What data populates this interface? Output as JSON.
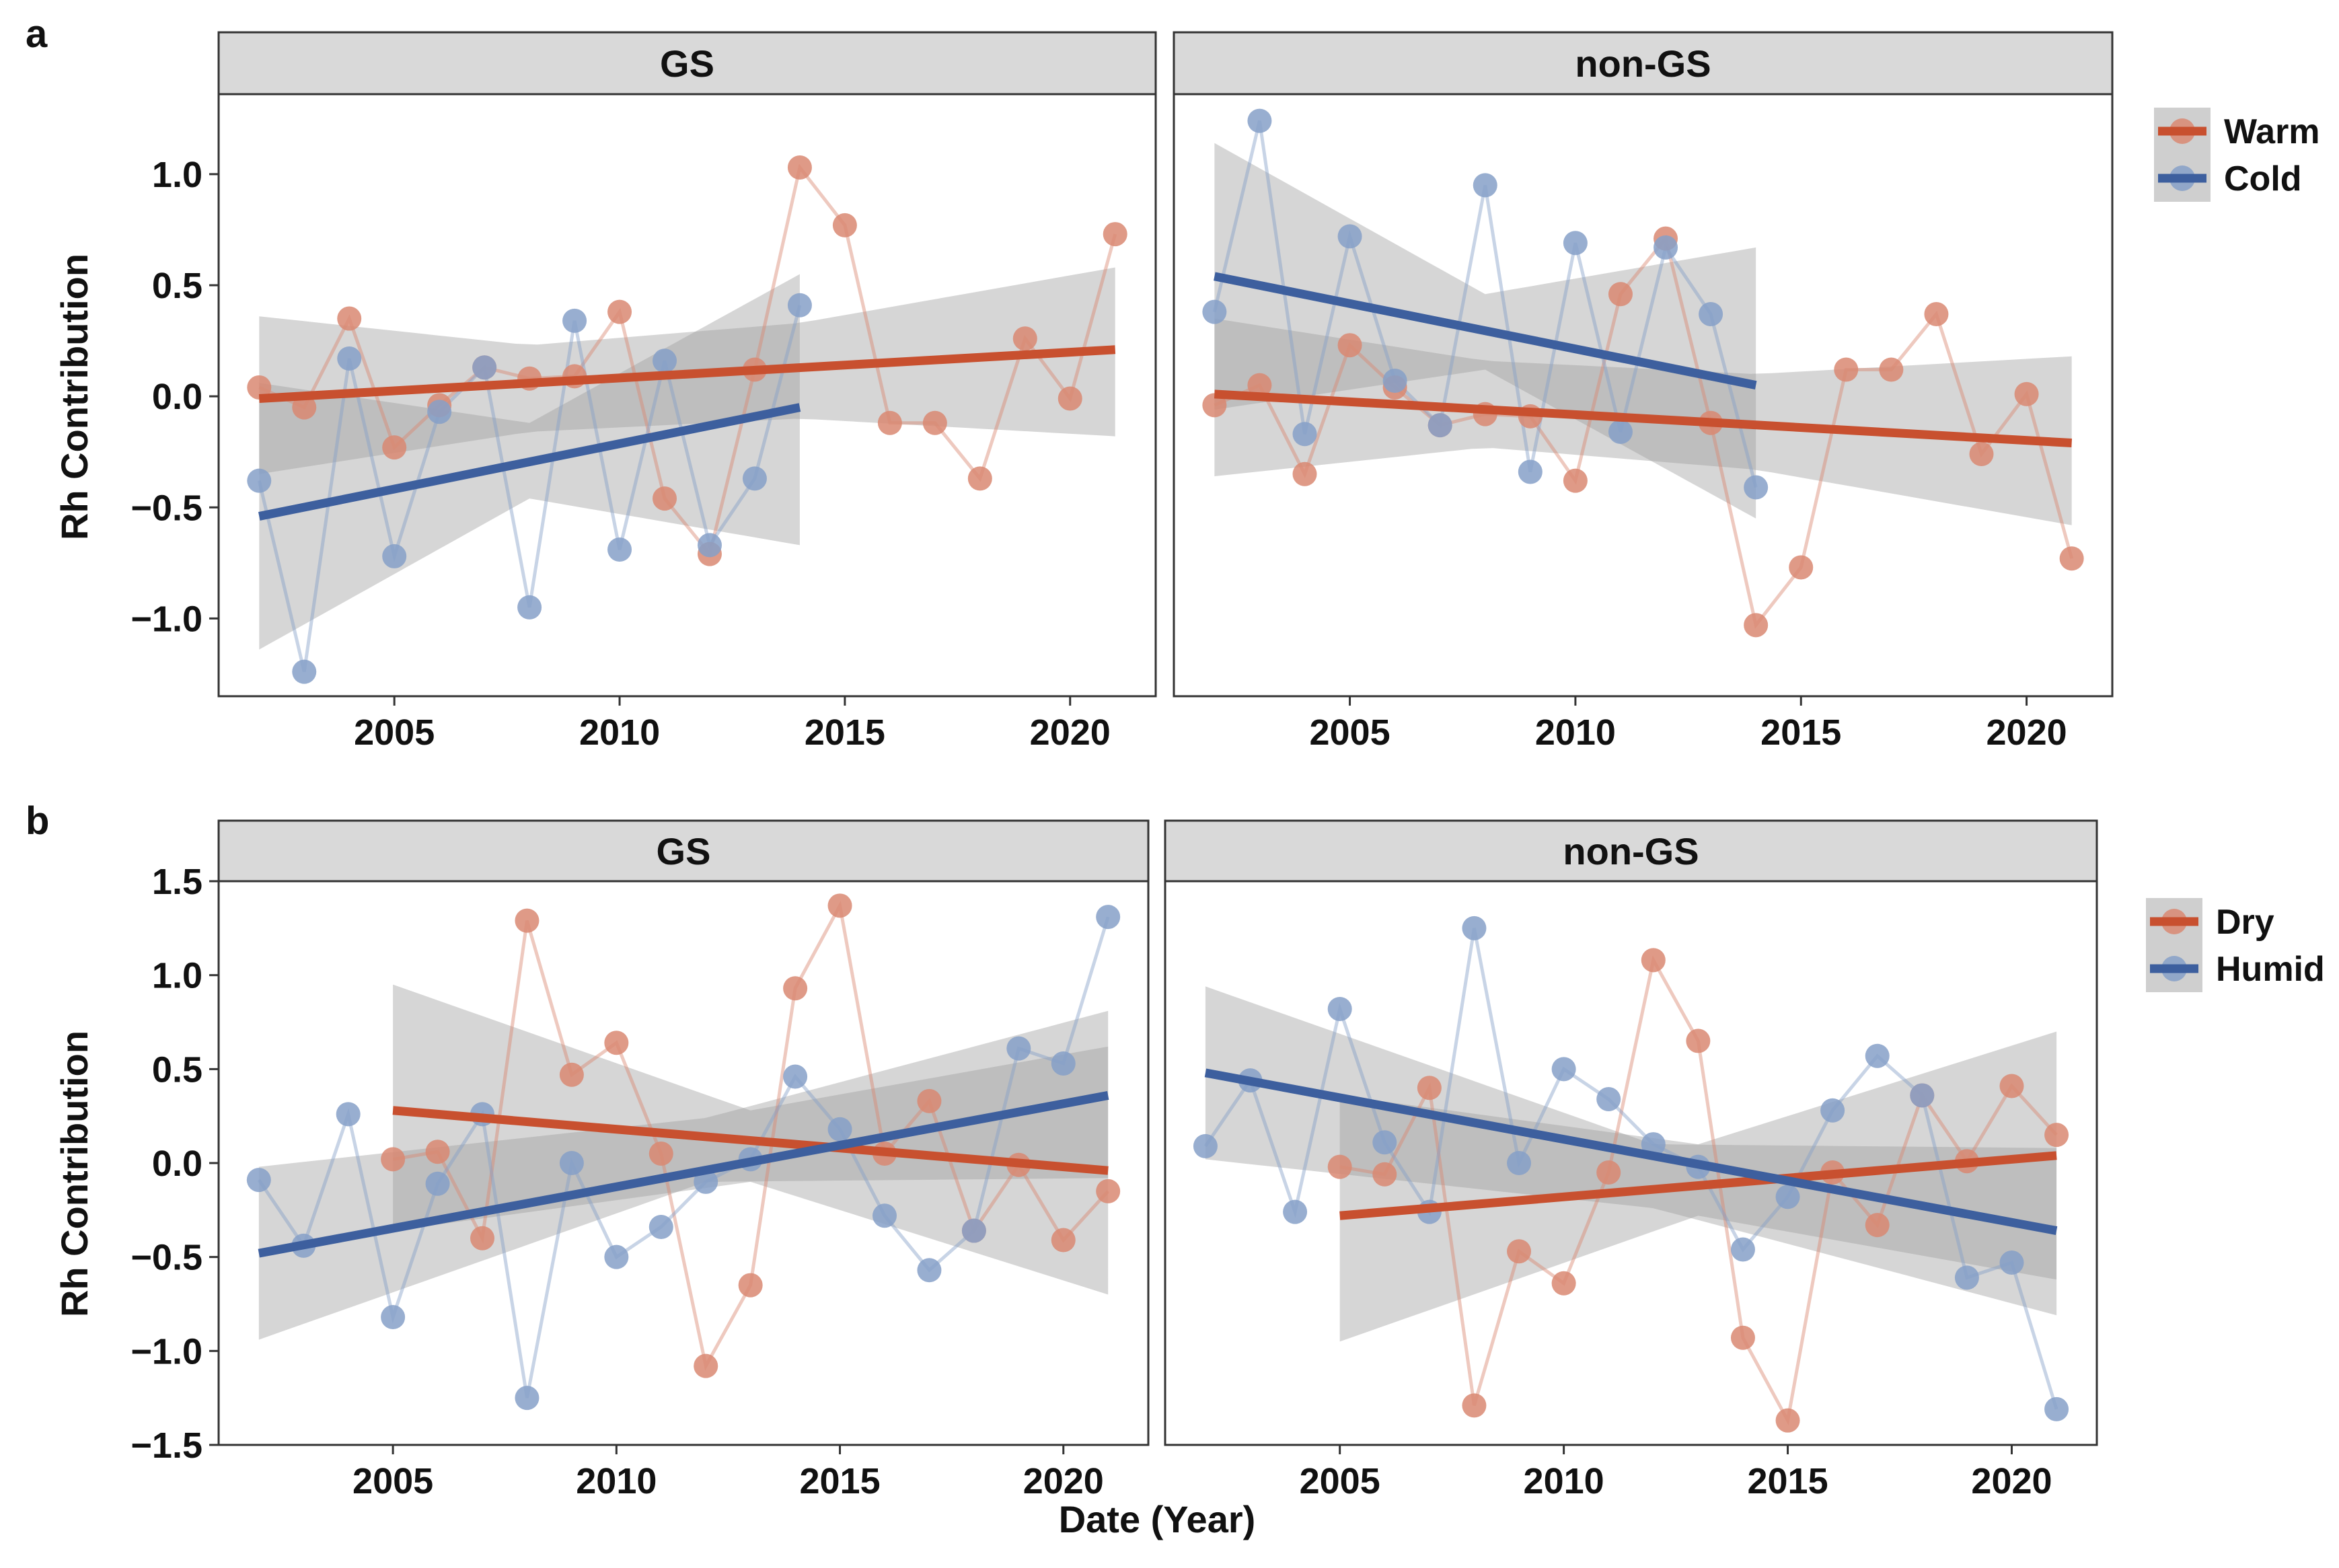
{
  "figure": {
    "x_axis_title": "Date (Year)",
    "y_axis_title": "Rh Contribution"
  },
  "colors": {
    "warm": "#c8502f",
    "cold": "#3d5f9e",
    "warm_point": "#d98872",
    "cold_point": "#86a0c8",
    "band": "#9e9e9e",
    "strip": "#d9d9d9",
    "frame": "#333333"
  },
  "chart_data": [
    {
      "type": "line",
      "panel_label": "a",
      "facets": [
        "GS",
        "non-GS"
      ],
      "x_ticks": [
        2005,
        2010,
        2015,
        2020
      ],
      "y_ticks": [
        -1.0,
        -0.5,
        0.0,
        0.5,
        1.0
      ],
      "y_tick_labels": [
        "−1.0",
        "−0.5",
        "0.0",
        "0.5",
        "1.0"
      ],
      "xlim": [
        2001.1,
        2021.9
      ],
      "ylim": [
        -1.35,
        1.36
      ],
      "legend": {
        "position": "right",
        "entries": [
          "Warm",
          "Cold"
        ]
      },
      "panels": [
        {
          "facet": "GS",
          "series": [
            {
              "name": "Warm",
              "x": [
                2002,
                2003,
                2004,
                2005,
                2006,
                2007,
                2008,
                2009,
                2010,
                2011,
                2012,
                2013,
                2014,
                2015,
                2016,
                2017,
                2018,
                2019,
                2020,
                2021
              ],
              "y": [
                0.04,
                -0.05,
                0.35,
                -0.23,
                -0.04,
                0.13,
                0.08,
                0.09,
                0.38,
                -0.46,
                -0.71,
                0.12,
                1.03,
                0.77,
                -0.12,
                -0.12,
                -0.37,
                0.26,
                -0.01,
                0.73
              ],
              "fit": {
                "x": [
                  2002,
                  2021
                ],
                "y": [
                  -0.01,
                  0.21
                ]
              },
              "band": {
                "x": [
                  2002,
                  2008,
                  2014,
                  2021
                ],
                "lower": [
                  -0.35,
                  -0.16,
                  -0.1,
                  -0.18
                ],
                "upper": [
                  0.36,
                  0.23,
                  0.33,
                  0.58
                ]
              }
            },
            {
              "name": "Cold",
              "x": [
                2002,
                2003,
                2004,
                2005,
                2006,
                2007,
                2008,
                2009,
                2010,
                2011,
                2012,
                2013,
                2014
              ],
              "y": [
                -0.38,
                -1.24,
                0.17,
                -0.72,
                -0.07,
                0.13,
                -0.95,
                0.34,
                -0.69,
                0.16,
                -0.67,
                -0.37,
                0.41
              ],
              "fit": {
                "x": [
                  2002,
                  2014
                ],
                "y": [
                  -0.54,
                  -0.05
                ]
              },
              "band": {
                "x": [
                  2002,
                  2008,
                  2014
                ],
                "lower": [
                  -1.14,
                  -0.46,
                  -0.67
                ],
                "upper": [
                  0.06,
                  -0.12,
                  0.55
                ]
              }
            }
          ]
        },
        {
          "facet": "non-GS",
          "series": [
            {
              "name": "Warm",
              "x": [
                2002,
                2003,
                2004,
                2005,
                2006,
                2007,
                2008,
                2009,
                2010,
                2011,
                2012,
                2013,
                2014,
                2015,
                2016,
                2017,
                2018,
                2019,
                2020,
                2021
              ],
              "y": [
                -0.04,
                0.05,
                -0.35,
                0.23,
                0.04,
                -0.13,
                -0.08,
                -0.09,
                -0.38,
                0.46,
                0.71,
                -0.12,
                -1.03,
                -0.77,
                0.12,
                0.12,
                0.37,
                -0.26,
                0.01,
                -0.73
              ],
              "fit": {
                "x": [
                  2002,
                  2021
                ],
                "y": [
                  0.01,
                  -0.21
                ]
              },
              "band": {
                "x": [
                  2002,
                  2008,
                  2014,
                  2021
                ],
                "lower": [
                  -0.36,
                  -0.23,
                  -0.33,
                  -0.58
                ],
                "upper": [
                  0.35,
                  0.16,
                  0.1,
                  0.18
                ]
              }
            },
            {
              "name": "Cold",
              "x": [
                2002,
                2003,
                2004,
                2005,
                2006,
                2007,
                2008,
                2009,
                2010,
                2011,
                2012,
                2013,
                2014
              ],
              "y": [
                0.38,
                1.24,
                -0.17,
                0.72,
                0.07,
                -0.13,
                0.95,
                -0.34,
                0.69,
                -0.16,
                0.67,
                0.37,
                -0.41
              ],
              "fit": {
                "x": [
                  2002,
                  2014
                ],
                "y": [
                  0.54,
                  0.05
                ]
              },
              "band": {
                "x": [
                  2002,
                  2008,
                  2014
                ],
                "lower": [
                  -0.06,
                  0.12,
                  -0.55
                ],
                "upper": [
                  1.14,
                  0.46,
                  0.67
                ]
              }
            }
          ]
        }
      ]
    },
    {
      "type": "line",
      "panel_label": "b",
      "facets": [
        "GS",
        "non-GS"
      ],
      "x_ticks": [
        2005,
        2010,
        2015,
        2020
      ],
      "y_ticks": [
        -1.5,
        -1.0,
        -0.5,
        0.0,
        0.5,
        1.0,
        1.5
      ],
      "y_tick_labels": [
        "−1.5",
        "−1.0",
        "−0.5",
        "0.0",
        "0.5",
        "1.0",
        "1.5"
      ],
      "xlim": [
        2001.1,
        2021.9
      ],
      "ylim": [
        -1.5,
        1.5
      ],
      "legend": {
        "position": "right",
        "entries": [
          "Dry",
          "Humid"
        ]
      },
      "panels": [
        {
          "facet": "GS",
          "series": [
            {
              "name": "Dry",
              "x": [
                2005,
                2006,
                2007,
                2008,
                2009,
                2010,
                2011,
                2012,
                2013,
                2014,
                2015,
                2016,
                2017,
                2018,
                2019,
                2020,
                2021
              ],
              "y": [
                0.02,
                0.06,
                -0.4,
                1.29,
                0.47,
                0.64,
                0.05,
                -1.08,
                -0.65,
                0.93,
                1.37,
                0.05,
                0.33,
                -0.36,
                -0.01,
                -0.41,
                -0.15
              ],
              "fit": {
                "x": [
                  2005,
                  2021
                ],
                "y": [
                  0.28,
                  -0.04
                ]
              },
              "band": {
                "x": [
                  2005,
                  2013,
                  2021
                ],
                "lower": [
                  -0.36,
                  -0.1,
                  -0.7
                ],
                "upper": [
                  0.95,
                  0.28,
                  0.62
                ]
              }
            },
            {
              "name": "Humid",
              "x": [
                2002,
                2003,
                2004,
                2005,
                2006,
                2007,
                2008,
                2009,
                2010,
                2011,
                2012,
                2013,
                2014,
                2015,
                2016,
                2017,
                2018,
                2019,
                2020,
                2021
              ],
              "y": [
                -0.09,
                -0.44,
                0.26,
                -0.82,
                -0.11,
                0.26,
                -1.25,
                0.0,
                -0.5,
                -0.34,
                -0.1,
                0.02,
                0.46,
                0.18,
                -0.28,
                -0.57,
                -0.36,
                0.61,
                0.53,
                1.31
              ],
              "fit": {
                "x": [
                  2002,
                  2021
                ],
                "y": [
                  -0.48,
                  0.36
                ]
              },
              "band": {
                "x": [
                  2002,
                  2012,
                  2021
                ],
                "lower": [
                  -0.94,
                  -0.1,
                  -0.08
                ],
                "upper": [
                  -0.02,
                  0.24,
                  0.81
                ]
              }
            }
          ]
        },
        {
          "facet": "non-GS",
          "series": [
            {
              "name": "Dry",
              "x": [
                2005,
                2006,
                2007,
                2008,
                2009,
                2010,
                2011,
                2012,
                2013,
                2014,
                2015,
                2016,
                2017,
                2018,
                2019,
                2020,
                2021
              ],
              "y": [
                -0.02,
                -0.06,
                0.4,
                -1.29,
                -0.47,
                -0.64,
                -0.05,
                1.08,
                0.65,
                -0.93,
                -1.37,
                -0.05,
                -0.33,
                0.36,
                0.01,
                0.41,
                0.15
              ],
              "fit": {
                "x": [
                  2005,
                  2021
                ],
                "y": [
                  -0.28,
                  0.04
                ]
              },
              "band": {
                "x": [
                  2005,
                  2013,
                  2021
                ],
                "lower": [
                  -0.95,
                  -0.28,
                  -0.62
                ],
                "upper": [
                  0.36,
                  0.1,
                  0.7
                ]
              }
            },
            {
              "name": "Humid",
              "x": [
                2002,
                2003,
                2004,
                2005,
                2006,
                2007,
                2008,
                2009,
                2010,
                2011,
                2012,
                2013,
                2014,
                2015,
                2016,
                2017,
                2018,
                2019,
                2020,
                2021
              ],
              "y": [
                0.09,
                0.44,
                -0.26,
                0.82,
                0.11,
                -0.26,
                1.25,
                0.0,
                0.5,
                0.34,
                0.1,
                -0.02,
                -0.46,
                -0.18,
                0.28,
                0.57,
                0.36,
                -0.61,
                -0.53,
                -1.31
              ],
              "fit": {
                "x": [
                  2002,
                  2021
                ],
                "y": [
                  0.48,
                  -0.36
                ]
              },
              "band": {
                "x": [
                  2002,
                  2012,
                  2021
                ],
                "lower": [
                  0.02,
                  -0.24,
                  -0.81
                ],
                "upper": [
                  0.94,
                  0.1,
                  0.08
                ]
              }
            }
          ]
        }
      ]
    }
  ]
}
